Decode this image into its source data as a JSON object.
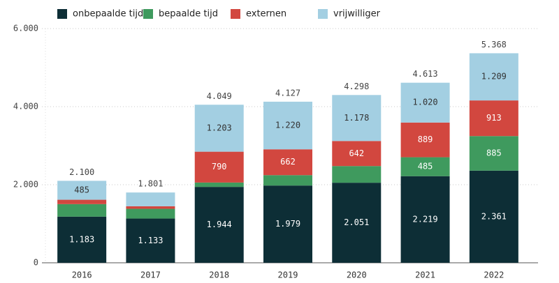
{
  "chart_data": {
    "type": "stacked_bar",
    "categories": [
      "2016",
      "2017",
      "2018",
      "2019",
      "2020",
      "2021",
      "2022"
    ],
    "series": [
      {
        "name": "onbepaalde tijd",
        "color": "#0d2e36",
        "values": [
          1183,
          1133,
          1944,
          1979,
          2051,
          2219,
          2361
        ],
        "value_labels": [
          "1.183",
          "1.133",
          "1.944",
          "1.979",
          "2.051",
          "2.219",
          "2.361"
        ]
      },
      {
        "name": "bepaalde tijd",
        "color": "#3f9a5e",
        "values": [
          320,
          250,
          112,
          266,
          427,
          485,
          885
        ],
        "value_labels": [
          null,
          null,
          null,
          null,
          null,
          "485",
          "885"
        ]
      },
      {
        "name": "externen",
        "color": "#d2473f",
        "values": [
          112,
          65,
          790,
          662,
          642,
          889,
          913
        ],
        "value_labels": [
          null,
          null,
          "790",
          "662",
          "642",
          "889",
          "913"
        ]
      },
      {
        "name": "vrijwilliger",
        "color": "#a3cfe2",
        "values": [
          485,
          353,
          1203,
          1220,
          1178,
          1020,
          1209
        ],
        "value_labels": [
          "485",
          null,
          "1.203",
          "1.220",
          "1.178",
          "1.020",
          "1.209"
        ]
      }
    ],
    "totals": {
      "values": [
        2100,
        1801,
        4049,
        4127,
        4298,
        4613,
        5368
      ],
      "value_labels": [
        "2.100",
        "1.801",
        "4.049",
        "4.127",
        "4.298",
        "4.613",
        "5.368"
      ]
    },
    "ylim": [
      0,
      6000
    ],
    "yticks": [
      0,
      {
        "value": 2000,
        "label": "2.000"
      },
      {
        "value": 4000,
        "label": "4.000"
      },
      {
        "value": 6000,
        "label": "6.000"
      }
    ],
    "grid": true
  }
}
